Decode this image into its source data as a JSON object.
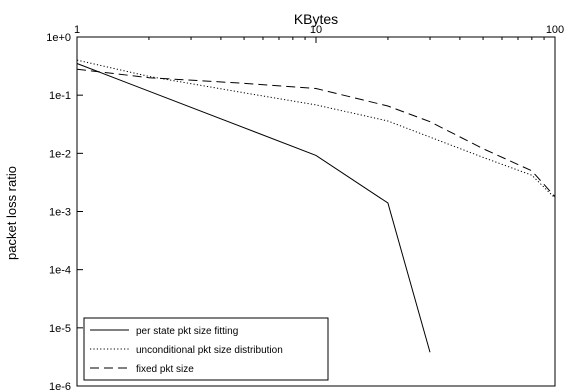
{
  "chart_data": {
    "type": "line",
    "title": "",
    "xlabel": "KBytes",
    "ylabel": "packet loss ratio",
    "x_scale": "log",
    "y_scale": "log",
    "xlim": [
      1,
      100
    ],
    "ylim": [
      1e-06,
      1
    ],
    "x_ticks": [
      {
        "value": 1,
        "label": "1"
      },
      {
        "value": 10,
        "label": "10"
      },
      {
        "value": 100,
        "label": "100"
      }
    ],
    "y_ticks": [
      {
        "value": 1,
        "label": "1e+0"
      },
      {
        "value": 0.1,
        "label": "1e-1"
      },
      {
        "value": 0.01,
        "label": "1e-2"
      },
      {
        "value": 0.001,
        "label": "1e-3"
      },
      {
        "value": 0.0001,
        "label": "1e-4"
      },
      {
        "value": 1e-05,
        "label": "1e-5"
      },
      {
        "value": 1e-06,
        "label": "1e-6"
      }
    ],
    "grid": false,
    "legend_position": "bottom-left",
    "series": [
      {
        "name": "per state pkt size fitting",
        "style": "solid",
        "x": [
          1,
          10,
          20,
          30
        ],
        "y": [
          0.35,
          0.0092,
          0.0014,
          3.8e-06
        ]
      },
      {
        "name": "unconditional pkt size distribution",
        "style": "dotted",
        "x": [
          1,
          2,
          5,
          10,
          20,
          30,
          50,
          80,
          100
        ],
        "y": [
          0.4,
          0.21,
          0.11,
          0.068,
          0.036,
          0.019,
          0.0085,
          0.0042,
          0.0017
        ]
      },
      {
        "name": "fixed pkt size",
        "style": "dashed",
        "x": [
          1,
          2,
          5,
          10,
          20,
          30,
          50,
          80,
          100
        ],
        "y": [
          0.28,
          0.2,
          0.16,
          0.13,
          0.065,
          0.035,
          0.012,
          0.005,
          0.0018
        ]
      }
    ]
  }
}
